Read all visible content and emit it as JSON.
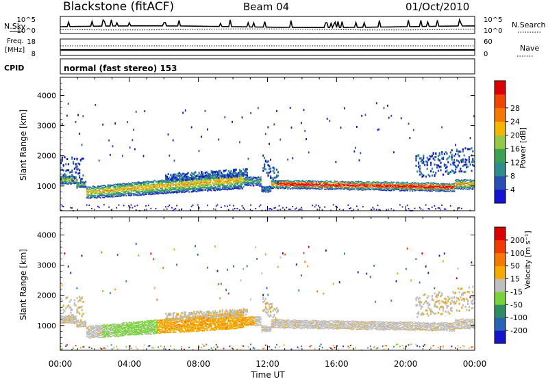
{
  "header": {
    "station": "Blackstone (fitACF)",
    "beam": "Beam 04",
    "date": "01/Oct/2010"
  },
  "strips": {
    "nsky_label": "N.Sky",
    "nsearch_label": "N.Search",
    "freq_label_1": "Freq.",
    "freq_label_2": "[MHz]",
    "nave_label": "Nave",
    "cpid_label": "CPID",
    "cpid_text": "normal (fast stereo) 153",
    "noise_ticks_left": [
      "10^5",
      "10^0"
    ],
    "noise_ticks_right": [
      "10^5",
      "10^0"
    ],
    "freq_ticks": [
      "18",
      "8"
    ],
    "nave_ticks": [
      "60",
      "0"
    ]
  },
  "colors": {
    "power_scale": [
      "#1414d2",
      "#2850b4",
      "#2e8c8c",
      "#3ca050",
      "#96c846",
      "#f5b400",
      "#f57800",
      "#f04600",
      "#dc0000"
    ],
    "velocity_scale": [
      "#1414c8",
      "#2864b4",
      "#2d8c64",
      "#7ad23a",
      "#bebebe",
      "#f5aa00",
      "#f57800",
      "#f03c00",
      "#dc0000"
    ]
  },
  "chart_data": [
    {
      "type": "heatmap",
      "name": "power",
      "ylabel": "Slant Range [km]",
      "xlabel": "Time UT",
      "x_range_hours": [
        0,
        24
      ],
      "y_range_km": [
        180,
        4600
      ],
      "x_ticks": [
        "00:00",
        "04:00",
        "08:00",
        "12:00",
        "16:00",
        "20:00",
        "00:00"
      ],
      "y_ticks": [
        1000,
        2000,
        3000,
        4000
      ],
      "colorbar": {
        "label": "Power [dB]",
        "ticks": [
          "4",
          "8",
          "12",
          "16",
          "20",
          "24",
          "28"
        ],
        "range": [
          0,
          32
        ]
      }
    },
    {
      "type": "heatmap",
      "name": "velocity",
      "ylabel": "Slant Range [km]",
      "xlabel": "Time UT",
      "x_range_hours": [
        0,
        24
      ],
      "y_range_km": [
        180,
        4600
      ],
      "x_ticks": [
        "00:00",
        "04:00",
        "08:00",
        "12:00",
        "16:00",
        "20:00",
        "00:00"
      ],
      "y_ticks": [
        1000,
        2000,
        3000,
        4000
      ],
      "colorbar": {
        "label": "Velocity [m s⁻¹]",
        "ticks": [
          "200",
          "100",
          "50",
          "15",
          "-15",
          "-50",
          "-100",
          "-200"
        ]
      }
    }
  ],
  "footer": {
    "xlabel": "Time UT"
  }
}
